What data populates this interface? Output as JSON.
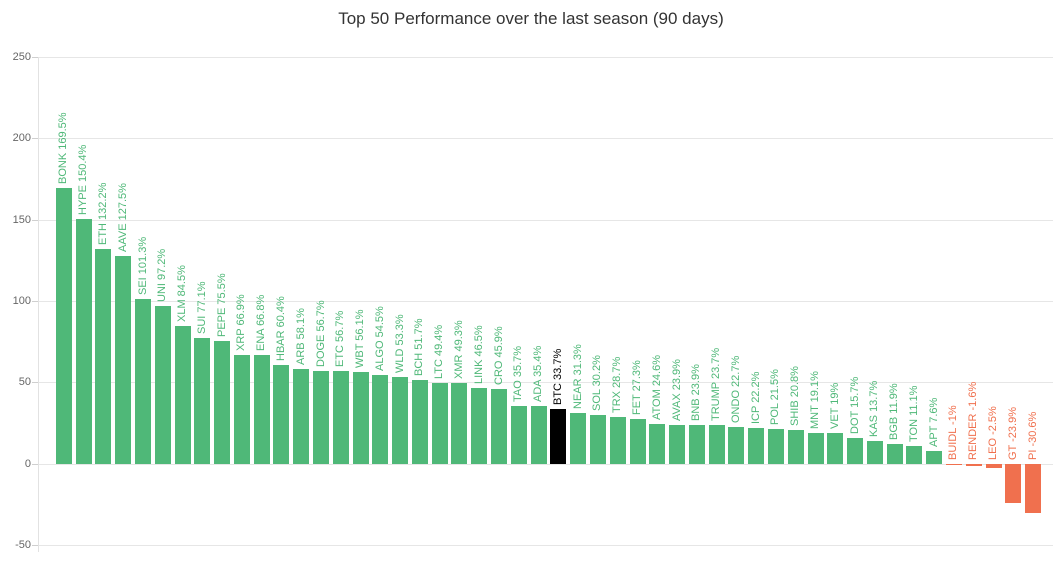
{
  "chart_data": {
    "type": "bar",
    "title": "Top 50 Performance over the last season (90 days)",
    "xlabel": "",
    "ylabel": "",
    "ylim": [
      -50,
      250
    ],
    "yticks": [
      250,
      200,
      150,
      100,
      50,
      0,
      -50
    ],
    "grid": true,
    "legend": "none",
    "highlight_category": "BTC",
    "colors": {
      "positive": "#4fb878",
      "negative": "#f0704e",
      "highlight": "#000000",
      "grid": "#e6e6e6",
      "axis_text": "#666666",
      "title_text": "#333333"
    },
    "categories": [
      "BONK",
      "HYPE",
      "ETH",
      "AAVE",
      "SEI",
      "UNI",
      "XLM",
      "SUI",
      "PEPE",
      "XRP",
      "ENA",
      "HBAR",
      "ARB",
      "DOGE",
      "ETC",
      "WBT",
      "ALGO",
      "WLD",
      "BCH",
      "LTC",
      "XMR",
      "LINK",
      "CRO",
      "TAO",
      "ADA",
      "BTC",
      "NEAR",
      "SOL",
      "TRX",
      "FET",
      "ATOM",
      "AVAX",
      "BNB",
      "TRUMP",
      "ONDO",
      "ICP",
      "POL",
      "SHIB",
      "MNT",
      "VET",
      "DOT",
      "KAS",
      "BGB",
      "TON",
      "APT",
      "BUIDL",
      "RENDER",
      "LEO",
      "GT",
      "PI"
    ],
    "values": [
      169.5,
      150.4,
      132.2,
      127.5,
      101.3,
      97.2,
      84.5,
      77.1,
      75.5,
      66.9,
      66.8,
      60.4,
      58.1,
      56.7,
      56.7,
      56.1,
      54.5,
      53.3,
      51.7,
      49.4,
      49.3,
      46.5,
      45.9,
      35.7,
      35.4,
      33.7,
      31.3,
      30.2,
      28.7,
      27.3,
      24.6,
      23.9,
      23.9,
      23.7,
      22.7,
      22.2,
      21.5,
      20.8,
      19.1,
      19,
      15.7,
      13.7,
      11.9,
      11.1,
      7.6,
      -1,
      -1.6,
      -2.5,
      -23.9,
      -30.6
    ],
    "labels": [
      "BONK 169.5%",
      "HYPE 150.4%",
      "ETH 132.2%",
      "AAVE 127.5%",
      "SEI 101.3%",
      "UNI 97.2%",
      "XLM 84.5%",
      "SUI 77.1%",
      "PEPE 75.5%",
      "XRP 66.9%",
      "ENA 66.8%",
      "HBAR 60.4%",
      "ARB 58.1%",
      "DOGE 56.7%",
      "ETC 56.7%",
      "WBT 56.1%",
      "ALGO 54.5%",
      "WLD 53.3%",
      "BCH 51.7%",
      "LTC 49.4%",
      "XMR 49.3%",
      "LINK 46.5%",
      "CRO 45.9%",
      "TAO 35.7%",
      "ADA 35.4%",
      "BTC 33.7%",
      "NEAR 31.3%",
      "SOL 30.2%",
      "TRX 28.7%",
      "FET 27.3%",
      "ATOM 24.6%",
      "AVAX 23.9%",
      "BNB 23.9%",
      "TRUMP 23.7%",
      "ONDO 22.7%",
      "ICP 22.2%",
      "POL 21.5%",
      "SHIB 20.8%",
      "MNT 19.1%",
      "VET 19%",
      "DOT 15.7%",
      "KAS 13.7%",
      "BGB 11.9%",
      "TON 11.1%",
      "APT 7.6%",
      "BUIDL -1%",
      "RENDER -1.6%",
      "LEO -2.5%",
      "GT -23.9%",
      "PI -30.6%"
    ]
  }
}
